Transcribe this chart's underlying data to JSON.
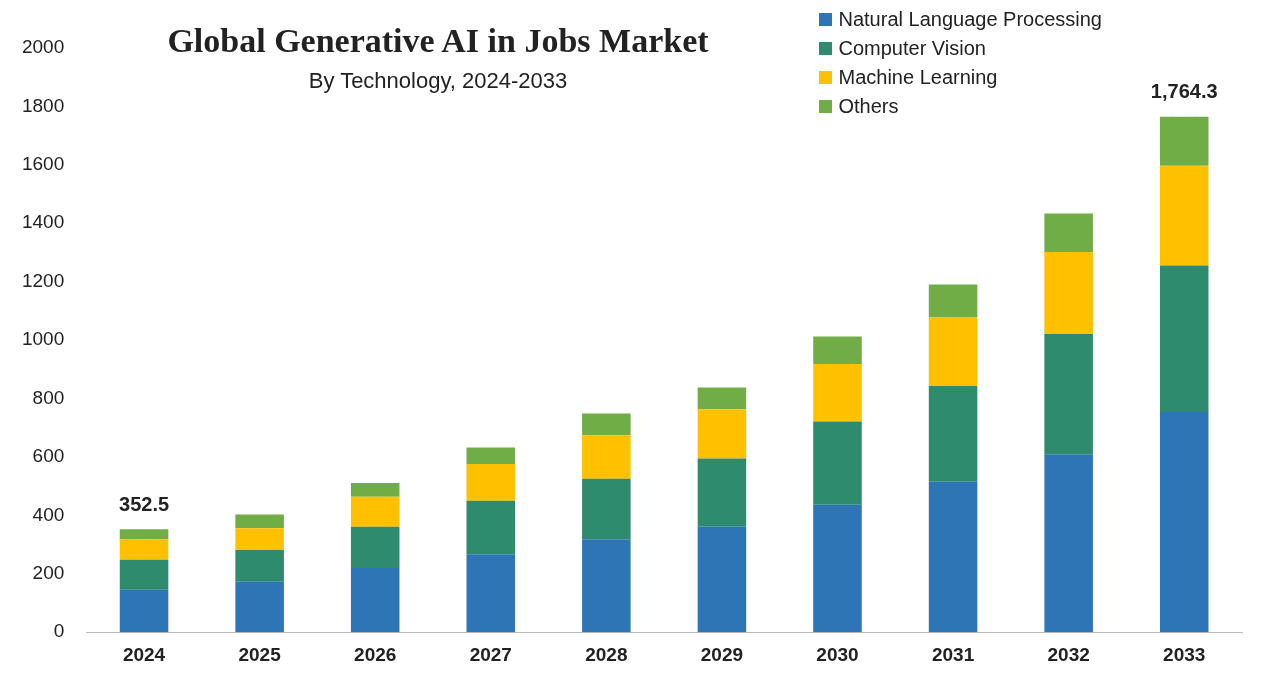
{
  "chart_data": {
    "type": "bar",
    "title": "Global Generative AI in Jobs Market",
    "subtitle": "By Technology, 2024-2033",
    "stacked": true,
    "categories": [
      "2024",
      "2025",
      "2026",
      "2027",
      "2028",
      "2029",
      "2030",
      "2031",
      "2032",
      "2033"
    ],
    "series": [
      {
        "name": "Natural Language Processing",
        "color": "#2e75b6",
        "values": [
          145,
          173,
          220,
          267,
          318,
          361,
          436,
          515,
          609,
          754
        ]
      },
      {
        "name": "Computer Vision",
        "color": "#2e8b6e",
        "values": [
          103,
          108,
          141,
          183,
          207,
          234,
          285,
          328,
          412,
          501
        ]
      },
      {
        "name": "Machine Learning",
        "color": "#ffc000",
        "values": [
          70,
          75,
          103,
          126,
          149,
          168,
          197,
          234,
          281,
          342
        ]
      },
      {
        "name": "Others",
        "color": "#70ad47",
        "values": [
          34.5,
          47,
          47,
          56,
          75,
          75,
          94,
          113,
          131,
          167.3
        ]
      }
    ],
    "totals": [
      "352.5",
      null,
      null,
      null,
      null,
      null,
      null,
      null,
      null,
      "1,764.3"
    ],
    "ylim": [
      0,
      2000
    ],
    "yticks": [
      0,
      200,
      400,
      600,
      800,
      1000,
      1200,
      1400,
      1600,
      1800,
      2000
    ],
    "grid": false,
    "legend": "top right"
  }
}
